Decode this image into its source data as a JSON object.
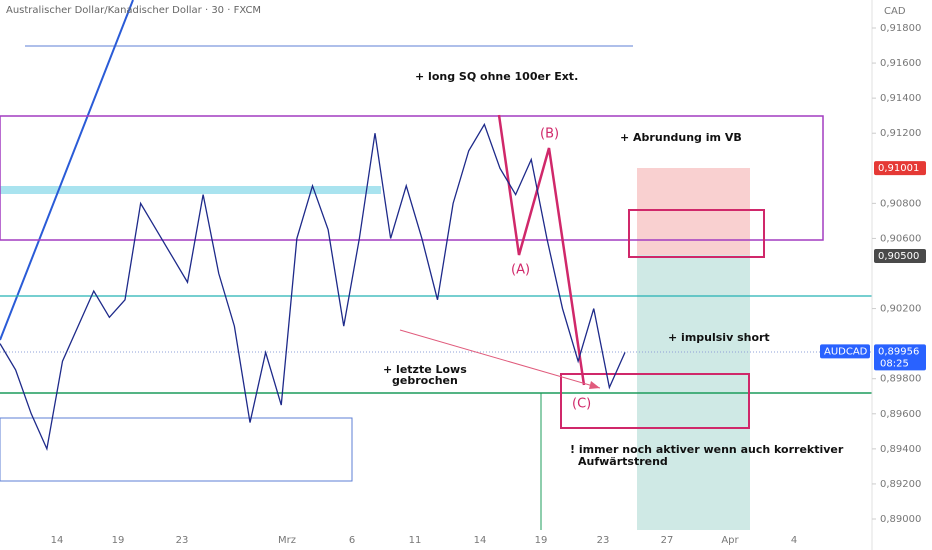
{
  "header": {
    "title": "Australischer Dollar/Kanadischer Dollar · 30 · FXCM",
    "currency": "CAD"
  },
  "chart_data": {
    "type": "line",
    "values": [
      0.9,
      0.8985,
      0.896,
      0.894,
      0.899,
      0.901,
      0.903,
      0.9015,
      0.9025,
      0.908,
      0.9065,
      0.905,
      0.9035,
      0.9085,
      0.904,
      0.901,
      0.8955,
      0.8995,
      0.8965,
      0.906,
      0.909,
      0.9065,
      0.901,
      0.906,
      0.912,
      0.906,
      0.909,
      0.906,
      0.9025,
      0.908,
      0.911,
      0.9125,
      0.91,
      0.9085,
      0.9105,
      0.906,
      0.902,
      0.899,
      0.902,
      0.8975,
      0.8995
    ],
    "color": "#1e2a8a",
    "ylim": [
      0.89,
      0.918
    ],
    "yticks": [
      {
        "value": 0.918,
        "label": "0,91800"
      },
      {
        "value": 0.916,
        "label": "0,91600"
      },
      {
        "value": 0.914,
        "label": "0,91400"
      },
      {
        "value": 0.912,
        "label": "0,91200"
      },
      {
        "value": 0.908,
        "label": "0,90800"
      },
      {
        "value": 0.906,
        "label": "0,90600"
      },
      {
        "value": 0.902,
        "label": "0,90200"
      },
      {
        "value": 0.898,
        "label": "0,89800"
      },
      {
        "value": 0.896,
        "label": "0,89600"
      },
      {
        "value": 0.894,
        "label": "0,89400"
      },
      {
        "value": 0.892,
        "label": "0,89200"
      },
      {
        "value": 0.89,
        "label": "0,89000"
      }
    ],
    "x_labels": [
      "14",
      "19",
      "23",
      "Mrz",
      "6",
      "11",
      "14",
      "19",
      "23",
      "27",
      "Apr",
      "4"
    ],
    "price_labels": [
      {
        "value": 0.91001,
        "label": "0,91001"
      },
      {
        "value": 0.905,
        "label": "0,90500"
      },
      {
        "value": 0.89956,
        "label": "0,89956",
        "symbol": "AUDCAD",
        "countdown": "08:25"
      }
    ],
    "annotations": [
      "+ long SQ ohne 100er Ext.",
      "+ Abrundung im VB",
      "(B)",
      "(A)",
      "(C)",
      "+ impulsiv short",
      "+ letzte Lows",
      "gebrochen",
      "! immer noch aktiver wenn auch korrektiver",
      "Aufwärtstrend"
    ]
  }
}
